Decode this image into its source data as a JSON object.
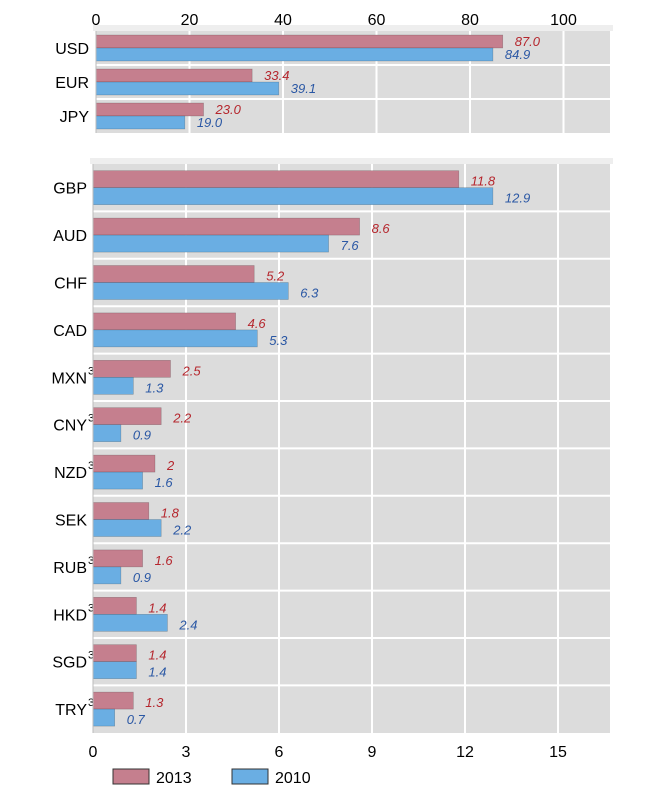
{
  "chart_data": [
    {
      "type": "bar",
      "orientation": "horizontal",
      "categories": [
        "USD",
        "EUR",
        "JPY"
      ],
      "superscripts": [
        "",
        "",
        ""
      ],
      "series": [
        {
          "name": "2013",
          "values": [
            87.0,
            33.4,
            23.0
          ],
          "labels": [
            "87.0",
            "33.4",
            "23.0"
          ],
          "color": "#c57f8e"
        },
        {
          "name": "2010",
          "values": [
            84.9,
            39.1,
            19.0
          ],
          "labels": [
            "84.9",
            "39.1",
            "19.0"
          ],
          "color": "#6aaee3"
        }
      ],
      "xlim": [
        0,
        110
      ],
      "xticks": [
        "0",
        "20",
        "40",
        "60",
        "80",
        "100"
      ],
      "xtick_values": [
        0,
        20,
        40,
        60,
        80,
        100
      ],
      "axis_position": "top",
      "grid": true
    },
    {
      "type": "bar",
      "orientation": "horizontal",
      "categories": [
        "GBP",
        "AUD",
        "CHF",
        "CAD",
        "MXN",
        "CNY",
        "NZD",
        "SEK",
        "RUB",
        "HKD",
        "SGD",
        "TRY"
      ],
      "superscripts": [
        "",
        "",
        "",
        "",
        "3",
        "3",
        "3",
        "",
        "3",
        "3",
        "3",
        "3"
      ],
      "series": [
        {
          "name": "2013",
          "values": [
            11.8,
            8.6,
            5.2,
            4.6,
            2.5,
            2.2,
            2,
            1.8,
            1.6,
            1.4,
            1.4,
            1.3
          ],
          "labels": [
            "11.8",
            "8.6",
            "5.2",
            "4.6",
            "2.5",
            "2.2",
            "2",
            "1.8",
            "1.6",
            "1.4",
            "1.4",
            "1.3"
          ],
          "color": "#c57f8e"
        },
        {
          "name": "2010",
          "values": [
            12.9,
            7.6,
            6.3,
            5.3,
            1.3,
            0.9,
            1.6,
            2.2,
            0.9,
            2.4,
            1.4,
            0.7
          ],
          "labels": [
            "12.9",
            "7.6",
            "6.3",
            "5.3",
            "1.3",
            "0.9",
            "1.6",
            "2.2",
            "0.9",
            "2.4",
            "1.4",
            "0.7"
          ],
          "color": "#6aaee3"
        }
      ],
      "xlim": [
        0,
        16.6
      ],
      "xticks": [
        "0",
        "3",
        "6",
        "9",
        "12",
        "15"
      ],
      "xtick_values": [
        0,
        3,
        6,
        9,
        12,
        15
      ],
      "axis_position": "bottom",
      "grid": true
    }
  ],
  "legend": [
    {
      "label": "2013",
      "color": "#c57f8e"
    },
    {
      "label": "2010",
      "color": "#6aaee3"
    }
  ],
  "colors": {
    "panel_bg": "#dcdcdc",
    "grid": "#ffffff",
    "label_2013": "#b5262d",
    "label_2010": "#2a57a4"
  }
}
